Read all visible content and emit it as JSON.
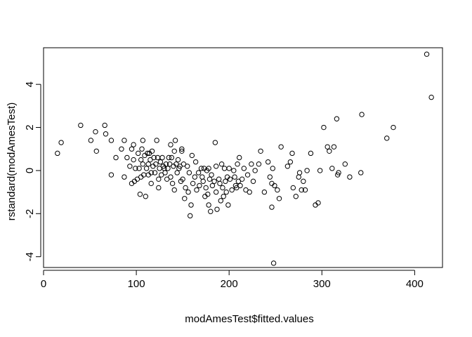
{
  "chart_data": {
    "type": "scatter",
    "title": "",
    "xlabel": "modAmesTest$fitted.values",
    "ylabel": "rstandard(modAmesTest)",
    "xlim": [
      0,
      430
    ],
    "ylim": [
      -4.5,
      5.7
    ],
    "x_ticks": [
      0,
      100,
      200,
      300,
      400
    ],
    "y_ticks": [
      -4,
      -2,
      0,
      2,
      4
    ],
    "x_tick_labels": [
      "0",
      "100",
      "200",
      "300",
      "400"
    ],
    "y_tick_labels": [
      "-4",
      "-2",
      "0",
      "2",
      "4"
    ],
    "grid": false,
    "legend": "none",
    "marker": "open-circle",
    "color": "#000000",
    "points": [
      [
        15,
        0.8
      ],
      [
        19,
        1.3
      ],
      [
        40,
        2.1
      ],
      [
        51,
        1.4
      ],
      [
        56,
        1.8
      ],
      [
        57,
        0.9
      ],
      [
        66,
        2.1
      ],
      [
        67,
        1.7
      ],
      [
        73,
        1.4
      ],
      [
        73,
        -0.2
      ],
      [
        78,
        0.6
      ],
      [
        84,
        1.0
      ],
      [
        87,
        1.4
      ],
      [
        87,
        -0.3
      ],
      [
        90,
        0.6
      ],
      [
        93,
        0.2
      ],
      [
        95,
        1.0
      ],
      [
        95,
        -0.6
      ],
      [
        97,
        1.2
      ],
      [
        97,
        0.5
      ],
      [
        98,
        -0.5
      ],
      [
        99,
        0.1
      ],
      [
        101,
        -0.4
      ],
      [
        102,
        0.8
      ],
      [
        103,
        0.1
      ],
      [
        104,
        -1.1
      ],
      [
        105,
        0.5
      ],
      [
        105,
        -0.3
      ],
      [
        106,
        1.0
      ],
      [
        107,
        1.4
      ],
      [
        107,
        0.3
      ],
      [
        108,
        -0.2
      ],
      [
        109,
        0.7
      ],
      [
        110,
        -1.2
      ],
      [
        111,
        0.1
      ],
      [
        112,
        0.8
      ],
      [
        113,
        0.3
      ],
      [
        113,
        -0.2
      ],
      [
        114,
        0.8
      ],
      [
        115,
        0.5
      ],
      [
        116,
        -0.1
      ],
      [
        116,
        -0.6
      ],
      [
        117,
        0.9
      ],
      [
        118,
        0.2
      ],
      [
        119,
        0.6
      ],
      [
        120,
        -0.1
      ],
      [
        121,
        0.3
      ],
      [
        122,
        1.4
      ],
      [
        123,
        0.6
      ],
      [
        124,
        -0.4
      ],
      [
        124,
        -0.8
      ],
      [
        125,
        0.1
      ],
      [
        126,
        0.4
      ],
      [
        127,
        -0.2
      ],
      [
        128,
        0.6
      ],
      [
        129,
        0.2
      ],
      [
        130,
        0.1
      ],
      [
        131,
        -0.1
      ],
      [
        132,
        0.3
      ],
      [
        133,
        -0.4
      ],
      [
        134,
        0.1
      ],
      [
        135,
        0.6
      ],
      [
        136,
        0.3
      ],
      [
        137,
        -0.3
      ],
      [
        137,
        1.2
      ],
      [
        138,
        0.6
      ],
      [
        139,
        -0.6
      ],
      [
        140,
        0.2
      ],
      [
        141,
        0.9
      ],
      [
        141,
        -0.9
      ],
      [
        142,
        1.4
      ],
      [
        143,
        0.3
      ],
      [
        144,
        -0.1
      ],
      [
        145,
        0.5
      ],
      [
        146,
        0.1
      ],
      [
        147,
        0.2
      ],
      [
        148,
        -0.5
      ],
      [
        149,
        0.9
      ],
      [
        149,
        1.0
      ],
      [
        150,
        -0.4
      ],
      [
        151,
        0.3
      ],
      [
        152,
        -1.3
      ],
      [
        153,
        -0.8
      ],
      [
        155,
        0.2
      ],
      [
        156,
        -1.0
      ],
      [
        157,
        -0.1
      ],
      [
        158,
        -2.1
      ],
      [
        159,
        -1.6
      ],
      [
        160,
        0.7
      ],
      [
        161,
        -0.6
      ],
      [
        163,
        -0.3
      ],
      [
        164,
        0.4
      ],
      [
        165,
        -0.9
      ],
      [
        167,
        -0.1
      ],
      [
        168,
        -0.7
      ],
      [
        170,
        0.1
      ],
      [
        171,
        -0.3
      ],
      [
        172,
        -0.5
      ],
      [
        173,
        0.1
      ],
      [
        174,
        -1.2
      ],
      [
        175,
        -0.8
      ],
      [
        176,
        0.0
      ],
      [
        177,
        -1.1
      ],
      [
        178,
        0.1
      ],
      [
        178,
        -1.6
      ],
      [
        179,
        -0.4
      ],
      [
        180,
        -1.9
      ],
      [
        181,
        -0.2
      ],
      [
        182,
        -0.7
      ],
      [
        184,
        -0.5
      ],
      [
        185,
        1.3
      ],
      [
        186,
        -1.0
      ],
      [
        186,
        0.2
      ],
      [
        187,
        -1.8
      ],
      [
        189,
        -0.4
      ],
      [
        190,
        -0.6
      ],
      [
        191,
        -1.4
      ],
      [
        192,
        0.3
      ],
      [
        193,
        -0.8
      ],
      [
        194,
        -1.2
      ],
      [
        195,
        0.1
      ],
      [
        196,
        -0.5
      ],
      [
        197,
        -1.0
      ],
      [
        198,
        -0.3
      ],
      [
        199,
        -1.6
      ],
      [
        200,
        0.1
      ],
      [
        201,
        -0.4
      ],
      [
        203,
        -0.9
      ],
      [
        205,
        0.0
      ],
      [
        206,
        -0.3
      ],
      [
        207,
        -0.7
      ],
      [
        208,
        -0.8
      ],
      [
        209,
        0.3
      ],
      [
        210,
        -0.5
      ],
      [
        211,
        0.6
      ],
      [
        212,
        -0.7
      ],
      [
        214,
        -0.4
      ],
      [
        216,
        0.1
      ],
      [
        218,
        -0.9
      ],
      [
        220,
        -0.2
      ],
      [
        222,
        -1.0
      ],
      [
        224,
        0.3
      ],
      [
        226,
        -0.5
      ],
      [
        228,
        0.0
      ],
      [
        232,
        0.3
      ],
      [
        234,
        0.9
      ],
      [
        238,
        -1.0
      ],
      [
        242,
        0.4
      ],
      [
        244,
        -0.3
      ],
      [
        246,
        -0.6
      ],
      [
        246,
        -1.7
      ],
      [
        247,
        0.1
      ],
      [
        248,
        -4.3
      ],
      [
        249,
        -0.7
      ],
      [
        252,
        -0.9
      ],
      [
        254,
        -1.3
      ],
      [
        256,
        1.1
      ],
      [
        263,
        0.2
      ],
      [
        266,
        0.4
      ],
      [
        268,
        0.8
      ],
      [
        269,
        -0.8
      ],
      [
        272,
        -1.2
      ],
      [
        275,
        -0.3
      ],
      [
        276,
        -0.1
      ],
      [
        278,
        -0.9
      ],
      [
        280,
        -0.5
      ],
      [
        282,
        -0.9
      ],
      [
        284,
        0.0
      ],
      [
        288,
        0.8
      ],
      [
        293,
        -1.6
      ],
      [
        296,
        -1.5
      ],
      [
        298,
        0.0
      ],
      [
        302,
        2.0
      ],
      [
        306,
        1.1
      ],
      [
        308,
        0.9
      ],
      [
        311,
        0.1
      ],
      [
        313,
        1.1
      ],
      [
        316,
        2.4
      ],
      [
        317,
        -0.2
      ],
      [
        318,
        -0.1
      ],
      [
        325,
        0.3
      ],
      [
        330,
        -0.3
      ],
      [
        342,
        -0.1
      ],
      [
        343,
        2.6
      ],
      [
        370,
        1.5
      ],
      [
        377,
        2.0
      ],
      [
        413,
        5.4
      ],
      [
        418,
        3.4
      ]
    ]
  }
}
